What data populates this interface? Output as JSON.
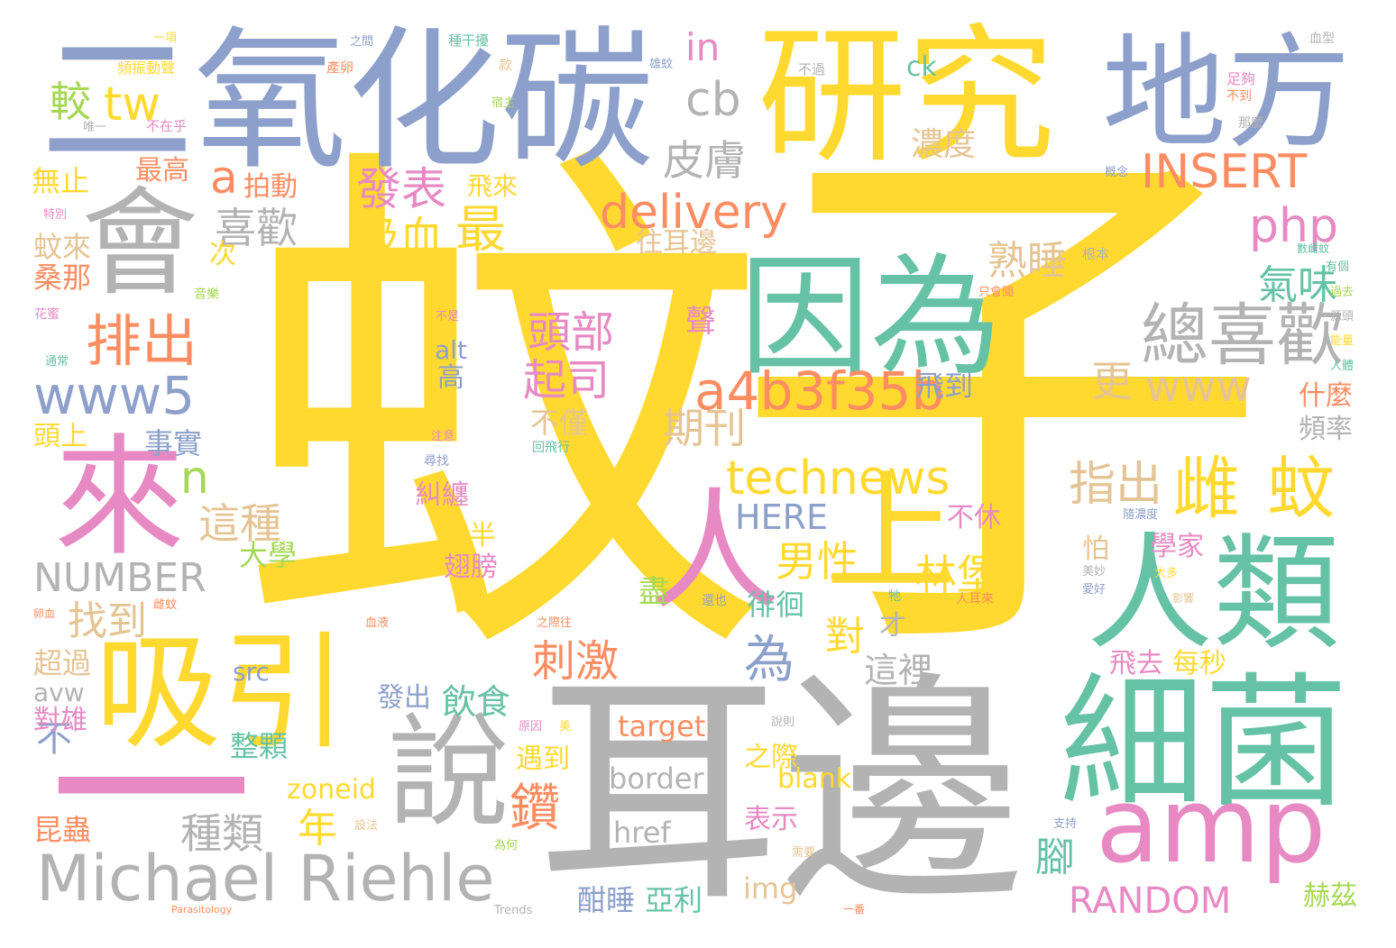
{
  "palette": {
    "yellow": "#FFD92F",
    "gray": "#B3B3B3",
    "teal": "#66C2A5",
    "blue": "#8DA0CB",
    "pink": "#E78AC3",
    "orange": "#FC8D62",
    "tan": "#E5C494",
    "green": "#A6D854"
  },
  "words": [
    {
      "text": "蚊",
      "color": "#FFD92F"
    },
    {
      "text": "子",
      "color": "#FFD92F"
    },
    {
      "text": "耳邊",
      "color": "#B3B3B3"
    },
    {
      "text": "二氧化碳",
      "color": "#8DA0CB"
    },
    {
      "text": "研究",
      "color": "#FFD92F"
    },
    {
      "text": "地方",
      "color": "#8DA0CB"
    },
    {
      "text": "會",
      "color": "#B3B3B3"
    },
    {
      "text": "因為",
      "color": "#66C2A5"
    },
    {
      "text": "人類",
      "color": "#66C2A5"
    },
    {
      "text": "細菌",
      "color": "#66C2A5"
    },
    {
      "text": "吸引",
      "color": "#FFD92F"
    },
    {
      "text": "來",
      "color": "#E78AC3"
    },
    {
      "text": "一",
      "color": "#E78AC3"
    },
    {
      "text": "說",
      "color": "#B3B3B3"
    },
    {
      "text": "amp",
      "color": "#E78AC3"
    },
    {
      "text": "Michael Riehle",
      "color": "#B3B3B3"
    },
    {
      "text": "人",
      "color": "#E78AC3"
    },
    {
      "text": "上",
      "color": "#FFD92F"
    },
    {
      "text": "a4b3f35b",
      "color": "#FC8D62"
    },
    {
      "text": "總喜歡",
      "color": "#B3B3B3"
    },
    {
      "text": "technews",
      "color": "#FFD92F"
    },
    {
      "text": "INSERT",
      "color": "#FC8D62"
    },
    {
      "text": "delivery",
      "color": "#FC8D62"
    },
    {
      "text": "www5",
      "color": "#8DA0CB"
    },
    {
      "text": "排出",
      "color": "#FC8D62"
    },
    {
      "text": "www",
      "color": "#E5C494"
    },
    {
      "text": "php",
      "color": "#E78AC3"
    },
    {
      "text": "雌",
      "color": "#FFD92F"
    },
    {
      "text": "蚊",
      "color": "#FFD92F"
    },
    {
      "text": "tw",
      "color": "#FFD92F"
    },
    {
      "text": "較",
      "color": "#A6D854"
    },
    {
      "text": "cb",
      "color": "#B3B3B3"
    },
    {
      "text": "in",
      "color": "#E78AC3"
    },
    {
      "text": "皮膚",
      "color": "#B3B3B3"
    },
    {
      "text": "a",
      "color": "#FC8D62"
    },
    {
      "text": "喜歡",
      "color": "#B3B3B3"
    },
    {
      "text": "發表",
      "color": "#E78AC3"
    },
    {
      "text": "最",
      "color": "#FFD92F"
    },
    {
      "text": "吸血",
      "color": "#FFD92F"
    },
    {
      "text": "頭部",
      "color": "#E78AC3"
    },
    {
      "text": "起司",
      "color": "#E78AC3"
    },
    {
      "text": "期刊",
      "color": "#E5C494"
    },
    {
      "text": "熟睡",
      "color": "#E5C494"
    },
    {
      "text": "氣味",
      "color": "#66C2A5"
    },
    {
      "text": "濃度",
      "color": "#E5C494"
    },
    {
      "text": "指出",
      "color": "#E5C494"
    },
    {
      "text": "男性",
      "color": "#FFD92F"
    },
    {
      "text": "林堡",
      "color": "#FFD92F"
    },
    {
      "text": "刺激",
      "color": "#FC8D62"
    },
    {
      "text": "為",
      "color": "#8DA0CB"
    },
    {
      "text": "HERE",
      "color": "#8DA0CB"
    },
    {
      "text": "NUMBER",
      "color": "#B3B3B3"
    },
    {
      "text": "RANDOM",
      "color": "#E78AC3"
    },
    {
      "text": "n",
      "color": "#A6D854"
    },
    {
      "text": "這種",
      "color": "#E5C494"
    },
    {
      "text": "找到",
      "color": "#E5C494"
    },
    {
      "text": "種類",
      "color": "#B3B3B3"
    },
    {
      "text": "鑽",
      "color": "#FC8D62"
    },
    {
      "text": "年",
      "color": "#FFD92F"
    },
    {
      "text": "飲食",
      "color": "#66C2A5"
    },
    {
      "text": "對",
      "color": "#FFD92F"
    },
    {
      "text": "更",
      "color": "#E5C494"
    },
    {
      "text": "腳",
      "color": "#66C2A5"
    },
    {
      "text": "這裡",
      "color": "#B3B3B3"
    },
    {
      "text": "border",
      "color": "#B3B3B3"
    },
    {
      "text": "target",
      "color": "#FC8D62"
    },
    {
      "text": "href",
      "color": "#B3B3B3"
    },
    {
      "text": "blank",
      "color": "#FFD92F"
    },
    {
      "text": "img",
      "color": "#E5C494"
    },
    {
      "text": "zoneid",
      "color": "#FFD92F"
    },
    {
      "text": "src",
      "color": "#8DA0CB"
    },
    {
      "text": "alt",
      "color": "#8DA0CB"
    },
    {
      "text": "avw",
      "color": "#B3B3B3"
    },
    {
      "text": "不",
      "color": "#8DA0CB"
    },
    {
      "text": "事實",
      "color": "#8DA0CB"
    },
    {
      "text": "最高",
      "color": "#FC8D62"
    },
    {
      "text": "無止",
      "color": "#FFD92F"
    },
    {
      "text": "拍動",
      "color": "#FC8D62"
    },
    {
      "text": "飛來",
      "color": "#FFD92F"
    },
    {
      "text": "往耳邊",
      "color": "#E5C494"
    },
    {
      "text": "蚊來",
      "color": "#E5C494"
    },
    {
      "text": "桑那",
      "color": "#FC8D62"
    },
    {
      "text": "頭上",
      "color": "#FFD92F"
    },
    {
      "text": "大學",
      "color": "#A6D854"
    },
    {
      "text": "高",
      "color": "#8DA0CB"
    },
    {
      "text": "不僅",
      "color": "#E5C494"
    },
    {
      "text": "糾纏",
      "color": "#E78AC3"
    },
    {
      "text": "夜半",
      "color": "#FFD92F"
    },
    {
      "text": "翅膀",
      "color": "#E78AC3"
    },
    {
      "text": "飛到",
      "color": "#8DA0CB"
    },
    {
      "text": "不休",
      "color": "#E78AC3"
    },
    {
      "text": "學家",
      "color": "#E78AC3"
    },
    {
      "text": "怕",
      "color": "#E5C494"
    },
    {
      "text": "飛去",
      "color": "#E78AC3"
    },
    {
      "text": "每秒",
      "color": "#FFD92F"
    },
    {
      "text": "什麼",
      "color": "#FC8D62"
    },
    {
      "text": "頻率",
      "color": "#B3B3B3"
    },
    {
      "text": "赫茲",
      "color": "#A6D854"
    },
    {
      "text": "整顆",
      "color": "#66C2A5"
    },
    {
      "text": "遇到",
      "color": "#FFD92F"
    },
    {
      "text": "之際",
      "color": "#FFD92F"
    },
    {
      "text": "表示",
      "color": "#E78AC3"
    },
    {
      "text": "酣睡",
      "color": "#8DA0CB"
    },
    {
      "text": "亞利",
      "color": "#66C2A5"
    },
    {
      "text": "發出",
      "color": "#8DA0CB"
    },
    {
      "text": "昆蟲",
      "color": "#FC8D62"
    },
    {
      "text": "超過",
      "color": "#E5C494"
    },
    {
      "text": "對雄",
      "color": "#E78AC3"
    },
    {
      "text": "徘徊",
      "color": "#66C2A5"
    },
    {
      "text": "盡",
      "color": "#A6D854"
    },
    {
      "text": "聲",
      "color": "#E78AC3"
    },
    {
      "text": "次",
      "color": "#FFD92F"
    },
    {
      "text": "才",
      "color": "#B3B3B3"
    },
    {
      "text": "ck",
      "color": "#66C2A5"
    },
    {
      "text": "一項",
      "color": "#FFD92F"
    },
    {
      "text": "之間",
      "color": "#8DA0CB"
    },
    {
      "text": "種干擾",
      "color": "#66C2A5"
    },
    {
      "text": "頻振動聲",
      "color": "#FFD92F"
    },
    {
      "text": "產卵",
      "color": "#FC8D62"
    },
    {
      "text": "款",
      "color": "#E5C494"
    },
    {
      "text": "雄蚊",
      "color": "#8DA0CB"
    },
    {
      "text": "不過",
      "color": "#B3B3B3"
    },
    {
      "text": "足夠",
      "color": "#E78AC3"
    },
    {
      "text": "不到",
      "color": "#FC8D62"
    },
    {
      "text": "血型",
      "color": "#B3B3B3"
    },
    {
      "text": "不在乎",
      "color": "#E78AC3"
    },
    {
      "text": "唯一",
      "color": "#B3B3B3"
    },
    {
      "text": "宿主",
      "color": "#A6D854"
    },
    {
      "text": "那麼",
      "color": "#B3B3B3"
    },
    {
      "text": "概念",
      "color": "#8DA0CB"
    },
    {
      "text": "特別",
      "color": "#E78AC3"
    },
    {
      "text": "音樂",
      "color": "#A6D854"
    },
    {
      "text": "花蜜",
      "color": "#E78AC3"
    },
    {
      "text": "通常",
      "color": "#66C2A5"
    },
    {
      "text": "不是",
      "color": "#E78AC3"
    },
    {
      "text": "注意",
      "color": "#E78AC3"
    },
    {
      "text": "尋找",
      "color": "#8DA0CB"
    },
    {
      "text": "回飛行",
      "color": "#66C2A5"
    },
    {
      "text": "根本",
      "color": "#B3B3B3"
    },
    {
      "text": "只會聞",
      "color": "#FC8D62"
    },
    {
      "text": "數雌蚊",
      "color": "#66C2A5"
    },
    {
      "text": "有個",
      "color": "#66C2A5"
    },
    {
      "text": "過去",
      "color": "#A6D854"
    },
    {
      "text": "源頭",
      "color": "#B3B3B3"
    },
    {
      "text": "能量",
      "color": "#FFD92F"
    },
    {
      "text": "人體",
      "color": "#66C2A5"
    },
    {
      "text": "隨濃度",
      "color": "#8DA0CB"
    },
    {
      "text": "大多",
      "color": "#FFD92F"
    },
    {
      "text": "影響",
      "color": "#E5C494"
    },
    {
      "text": "美妙",
      "color": "#B3B3B3"
    },
    {
      "text": "愛好",
      "color": "#8DA0CB"
    },
    {
      "text": "人耳來",
      "color": "#FC8D62"
    },
    {
      "text": "還也",
      "color": "#8DA0CB"
    },
    {
      "text": "牠",
      "color": "#66C2A5"
    },
    {
      "text": "血液",
      "color": "#FC8D62"
    },
    {
      "text": "之際往",
      "color": "#FC8D62"
    },
    {
      "text": "雌蚊",
      "color": "#FC8D62"
    },
    {
      "text": "卵血",
      "color": "#FC8D62"
    },
    {
      "text": "原因",
      "color": "#E78AC3"
    },
    {
      "text": "美",
      "color": "#FFD92F"
    },
    {
      "text": "說則",
      "color": "#B3B3B3"
    },
    {
      "text": "設法",
      "color": "#E5C494"
    },
    {
      "text": "為何",
      "color": "#A6D854"
    },
    {
      "text": "需要",
      "color": "#E5C494"
    },
    {
      "text": "支持",
      "color": "#8DA0CB"
    },
    {
      "text": "一番",
      "color": "#FC8D62"
    },
    {
      "text": "Parasitology",
      "color": "#FC8D62"
    },
    {
      "text": "Trends",
      "color": "#B3B3B3"
    },
    {
      "text": "頭上",
      "color": "#FFD92F"
    }
  ]
}
